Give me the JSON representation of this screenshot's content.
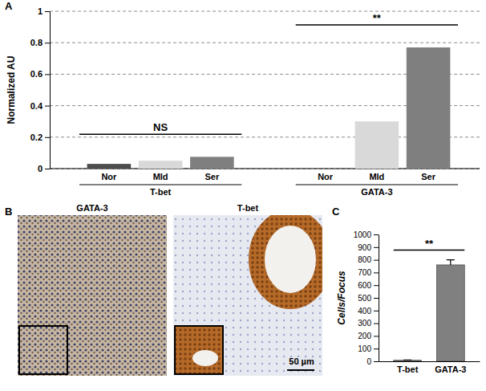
{
  "chart_data": [
    {
      "type": "bar",
      "panel": "A",
      "ylabel": "Normalized AU",
      "categories": [
        "Nor",
        "Mld",
        "Ser"
      ],
      "colors": [
        "#4d4d4d",
        "#d9d9d9",
        "#7f7f7f"
      ],
      "series": [
        {
          "name": "T-bet",
          "values": [
            0.03,
            0.05,
            0.075
          ]
        },
        {
          "name": "GATA-3",
          "values": [
            0,
            0.3,
            0.77
          ]
        }
      ],
      "annotations": [
        {
          "text": "NS",
          "group": "T-bet"
        },
        {
          "text": "**",
          "group": "GATA-3"
        }
      ],
      "ylim": [
        0,
        1
      ],
      "yticks": [
        0,
        0.2,
        0.4,
        0.6,
        0.8,
        1
      ],
      "grid": true
    },
    {
      "type": "bar",
      "panel": "C",
      "ylabel": "Cells/Focus",
      "categories": [
        "T-bet",
        "GATA-3"
      ],
      "values": [
        8,
        760
      ],
      "errors": [
        3,
        40
      ],
      "color": "#808080",
      "annotations": [
        {
          "text": "**"
        }
      ],
      "ylim": [
        0,
        1000
      ],
      "yticks": [
        0,
        100,
        200,
        300,
        400,
        500,
        600,
        700,
        800,
        900,
        1000
      ],
      "grid": false
    }
  ],
  "images": {
    "panel": "B",
    "panels": [
      {
        "title": "GATA-3"
      },
      {
        "title": "T-bet",
        "scale_bar": "50 µm"
      }
    ]
  }
}
